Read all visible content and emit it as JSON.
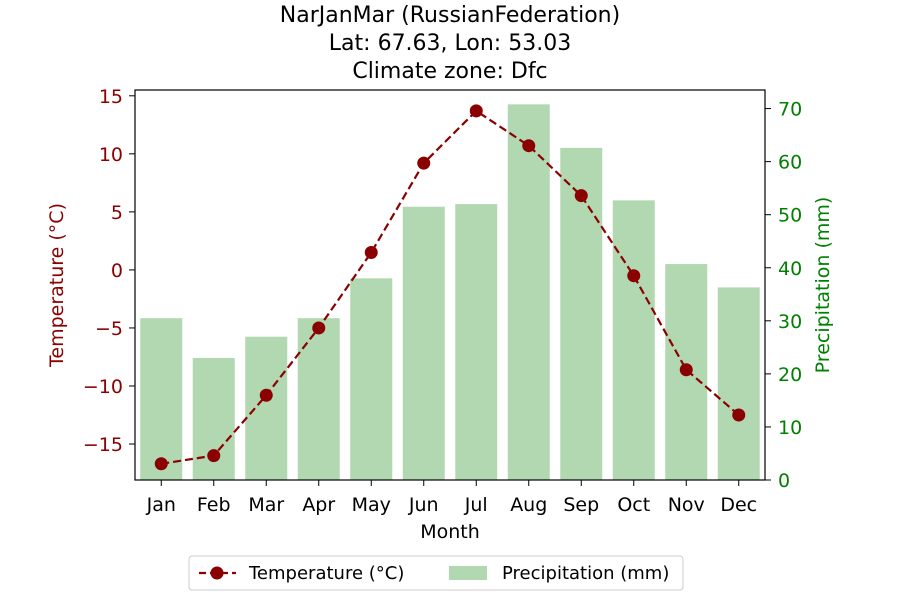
{
  "chart_data": {
    "type": "bar+line",
    "title_lines": [
      "NarJanMar (RussianFederation)",
      "Lat: 67.63, Lon: 53.03",
      "Climate zone: Dfc"
    ],
    "xlabel": "Month",
    "ylabel_left": "Temperature (°C)",
    "ylabel_right": "Precipitation (mm)",
    "categories": [
      "Jan",
      "Feb",
      "Mar",
      "Apr",
      "May",
      "Jun",
      "Jul",
      "Aug",
      "Sep",
      "Oct",
      "Nov",
      "Dec"
    ],
    "temperature": {
      "name": "Temperature (°C)",
      "color": "#8b0000",
      "values": [
        -16.7,
        -16.0,
        -10.8,
        -5.0,
        1.5,
        9.2,
        13.7,
        10.7,
        6.4,
        -0.5,
        -8.6,
        -12.5
      ]
    },
    "precipitation": {
      "name": "Precipitation (mm)",
      "color": "#b2d8b2",
      "values": [
        30.5,
        23.0,
        27.0,
        30.5,
        38.0,
        51.5,
        52.0,
        70.8,
        62.6,
        52.7,
        40.7,
        36.3
      ]
    },
    "ylim_left": [
      -18.1,
      15.5
    ],
    "ylim_right": [
      0,
      73.5
    ],
    "yticks_left": [
      -15,
      -10,
      -5,
      0,
      5,
      10,
      15
    ],
    "yticks_right": [
      0,
      10,
      20,
      30,
      40,
      50,
      60,
      70
    ],
    "left_tick_color": "#8b0000",
    "right_tick_color": "#008000",
    "legend_placement": "bottom-center"
  }
}
